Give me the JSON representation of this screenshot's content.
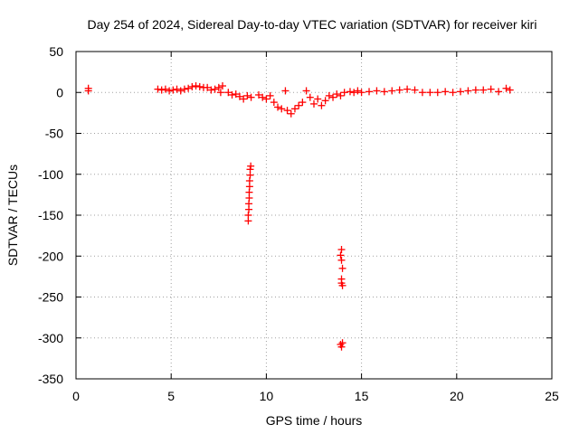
{
  "chart_data": {
    "type": "scatter",
    "title": "Day 254 of 2024, Sidereal Day-to-day VTEC variation (SDTVAR) for receiver kiri",
    "xlabel": "GPS time / hours",
    "ylabel": "SDTVAR / TECUs",
    "xlim": [
      0,
      25
    ],
    "ylim": [
      -350,
      50
    ],
    "x_ticks": [
      0,
      5,
      10,
      15,
      20,
      25
    ],
    "x_tick_labels": [
      "0",
      "5",
      "10",
      "15",
      "20",
      "25"
    ],
    "y_ticks": [
      50,
      0,
      -50,
      -100,
      -150,
      -200,
      -250,
      -300,
      -350
    ],
    "y_tick_labels": [
      "50",
      "0",
      "-50",
      "-100",
      "-150",
      "-200",
      "-250",
      "-300",
      "-350"
    ],
    "grid": true,
    "legend": "none",
    "marker": "plus",
    "color": "#ff0000",
    "series": [
      {
        "name": "SDTVAR",
        "points": [
          [
            0.65,
            5
          ],
          [
            0.65,
            2
          ],
          [
            4.3,
            4
          ],
          [
            4.5,
            3
          ],
          [
            4.7,
            4
          ],
          [
            4.9,
            2
          ],
          [
            5.1,
            3
          ],
          [
            5.3,
            4
          ],
          [
            5.5,
            2
          ],
          [
            5.7,
            4
          ],
          [
            5.9,
            5
          ],
          [
            6.1,
            7
          ],
          [
            6.3,
            8
          ],
          [
            6.5,
            7
          ],
          [
            6.7,
            6
          ],
          [
            6.9,
            6
          ],
          [
            7.1,
            3
          ],
          [
            7.3,
            4
          ],
          [
            7.5,
            6
          ],
          [
            7.6,
            0
          ],
          [
            7.7,
            8
          ],
          [
            8.0,
            0
          ],
          [
            8.2,
            -3
          ],
          [
            8.4,
            -2
          ],
          [
            8.6,
            -5
          ],
          [
            8.8,
            -8
          ],
          [
            9.0,
            -4
          ],
          [
            9.2,
            -6
          ],
          [
            9.6,
            -3
          ],
          [
            9.8,
            -6
          ],
          [
            10.0,
            -8
          ],
          [
            10.2,
            -4
          ],
          [
            10.4,
            -12
          ],
          [
            10.6,
            -18
          ],
          [
            10.8,
            -20
          ],
          [
            11.0,
            2
          ],
          [
            11.1,
            -22
          ],
          [
            11.3,
            -26
          ],
          [
            11.5,
            -20
          ],
          [
            11.7,
            -16
          ],
          [
            11.9,
            -12
          ],
          [
            12.1,
            2
          ],
          [
            12.3,
            -6
          ],
          [
            12.5,
            -14
          ],
          [
            12.7,
            -8
          ],
          [
            12.9,
            -16
          ],
          [
            13.1,
            -10
          ],
          [
            13.3,
            -4
          ],
          [
            13.5,
            -6
          ],
          [
            13.7,
            -2
          ],
          [
            13.9,
            -4
          ],
          [
            14.1,
            0
          ],
          [
            14.4,
            1
          ],
          [
            14.6,
            0
          ],
          [
            14.8,
            2
          ],
          [
            15.0,
            0
          ],
          [
            15.4,
            1
          ],
          [
            15.8,
            2
          ],
          [
            16.2,
            1
          ],
          [
            16.6,
            2
          ],
          [
            17.0,
            3
          ],
          [
            17.4,
            4
          ],
          [
            17.8,
            3
          ],
          [
            18.2,
            0
          ],
          [
            18.6,
            0
          ],
          [
            19.0,
            0
          ],
          [
            19.4,
            1
          ],
          [
            19.8,
            0
          ],
          [
            20.2,
            1
          ],
          [
            20.6,
            2
          ],
          [
            21.0,
            3
          ],
          [
            21.4,
            3
          ],
          [
            21.8,
            4
          ],
          [
            22.2,
            1
          ],
          [
            22.6,
            5
          ],
          [
            22.8,
            3
          ],
          [
            9.05,
            -157
          ],
          [
            9.05,
            -150
          ],
          [
            9.08,
            -143
          ],
          [
            9.08,
            -136
          ],
          [
            9.1,
            -129
          ],
          [
            9.1,
            -122
          ],
          [
            9.12,
            -115
          ],
          [
            9.12,
            -108
          ],
          [
            9.15,
            -101
          ],
          [
            9.15,
            -94
          ],
          [
            9.18,
            -90
          ],
          [
            13.9,
            -199
          ],
          [
            13.95,
            -192
          ],
          [
            13.95,
            -205
          ],
          [
            14.0,
            -215
          ],
          [
            13.95,
            -228
          ],
          [
            13.95,
            -233
          ],
          [
            14.0,
            -236
          ],
          [
            13.9,
            -308
          ],
          [
            13.95,
            -311
          ],
          [
            14.0,
            -306
          ]
        ]
      }
    ]
  }
}
